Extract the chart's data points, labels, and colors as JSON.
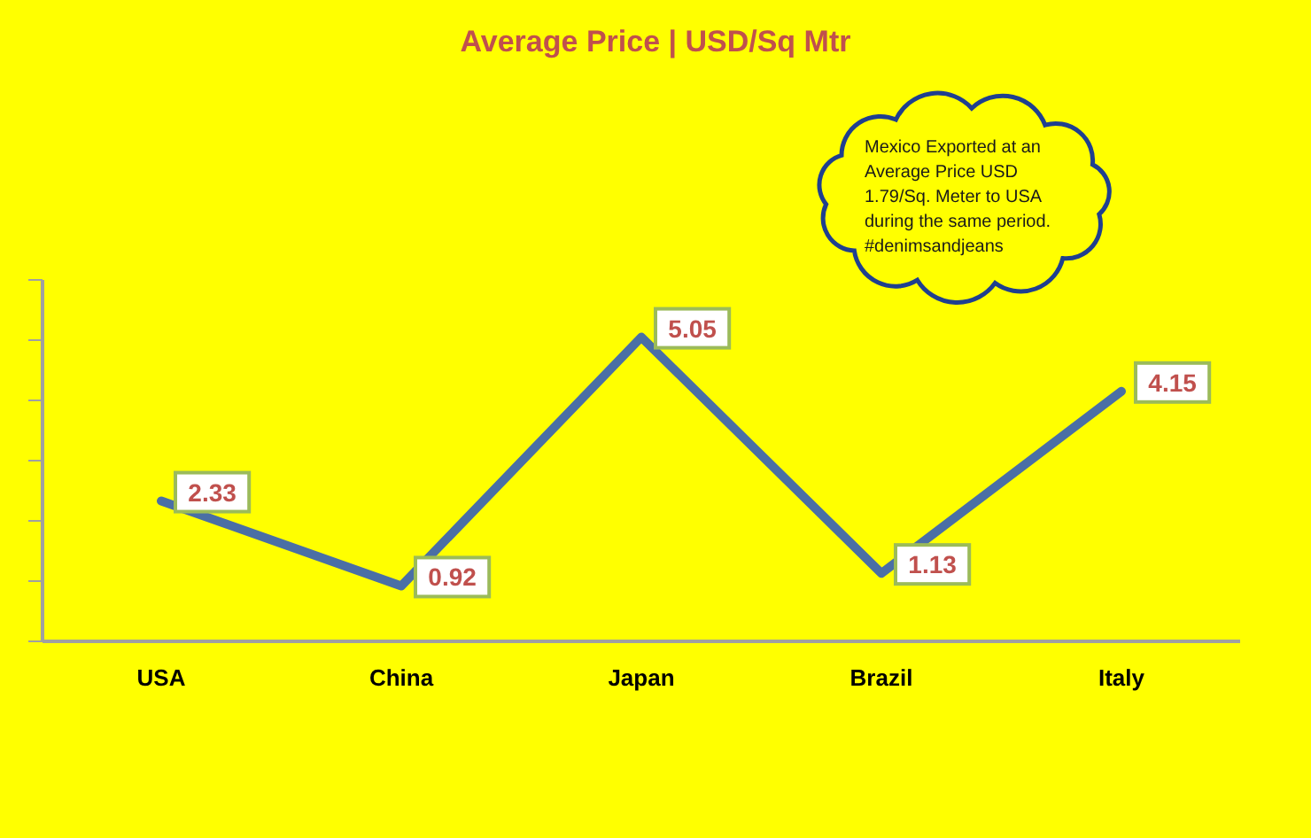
{
  "chart_data": {
    "type": "line",
    "title": "Average Price | USD/Sq Mtr",
    "categories": [
      "USA",
      "China",
      "Japan",
      "Brazil",
      "Italy"
    ],
    "series": [
      {
        "color": "#4a6fa5",
        "values": [
          2.33,
          0.92,
          5.05,
          1.13,
          4.15
        ]
      }
    ],
    "ylim": [
      0,
      6
    ],
    "yticks": [
      {
        "value": 0,
        "label": null
      },
      {
        "value": 1,
        "label": null
      },
      {
        "value": 2,
        "label": null
      },
      {
        "value": 3,
        "label": null
      },
      {
        "value": 4,
        "label": null
      },
      {
        "value": 5,
        "label": null
      },
      {
        "value": 6,
        "label": null
      }
    ],
    "tick_labels": "x",
    "data_labels": true,
    "marker": "none",
    "annotations": [
      "Mexico Exported at an Average Price USD 1.79/Sq. Meter to USA during the same period. #denimsandjeans"
    ]
  }
}
